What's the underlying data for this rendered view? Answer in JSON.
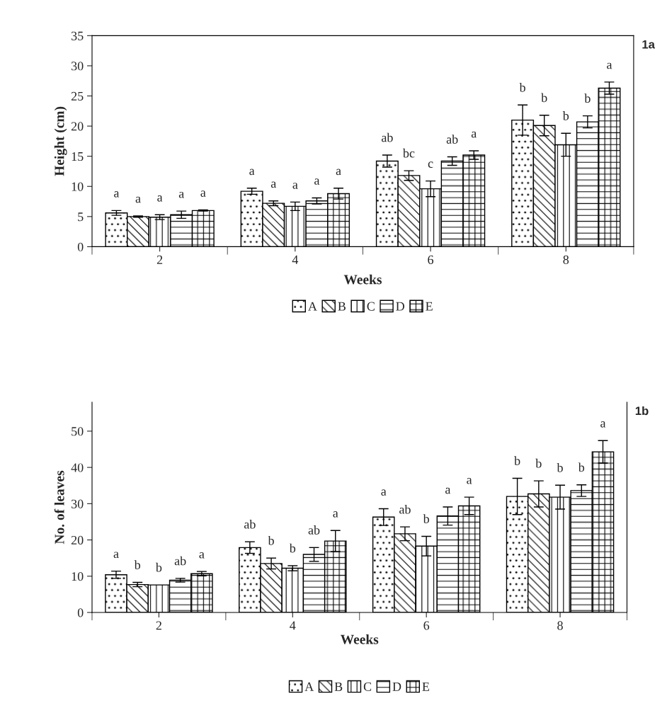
{
  "chart_data": [
    {
      "type": "bar",
      "categories": [
        "2",
        "4",
        "6",
        "8"
      ],
      "xlabel": "Weeks",
      "ylabel": "Height (cm)",
      "ylim": [
        0,
        35
      ],
      "yticks": [
        0,
        5,
        10,
        15,
        20,
        25,
        30,
        35
      ],
      "grid": false,
      "legend": "bottom",
      "annotations": [
        "1a"
      ],
      "series": [
        {
          "name": "A",
          "color": "#000000",
          "values": [
            5.6,
            9.2,
            14.2,
            21.0
          ],
          "errors": [
            0.4,
            0.5,
            1.0,
            2.5
          ],
          "value_labels": [
            "a",
            "a",
            "ab",
            "b"
          ]
        },
        {
          "name": "B",
          "color": "#000000",
          "values": [
            5.0,
            7.2,
            11.8,
            20.1
          ],
          "errors": [
            0.1,
            0.4,
            0.8,
            1.7
          ],
          "value_labels": [
            "a",
            "a",
            "bc",
            "b"
          ]
        },
        {
          "name": "C",
          "color": "#000000",
          "values": [
            4.9,
            6.7,
            9.6,
            16.9
          ],
          "errors": [
            0.4,
            0.7,
            1.3,
            1.9
          ],
          "value_labels": [
            "a",
            "a",
            "c",
            "b"
          ]
        },
        {
          "name": "D",
          "color": "#000000",
          "values": [
            5.3,
            7.6,
            14.2,
            20.7
          ],
          "errors": [
            0.6,
            0.5,
            0.7,
            1.0
          ],
          "value_labels": [
            "a",
            "a",
            "ab",
            "b"
          ]
        },
        {
          "name": "E",
          "color": "#000000",
          "values": [
            6.0,
            8.8,
            15.2,
            26.3
          ],
          "errors": [
            0.1,
            0.9,
            0.7,
            1.0
          ],
          "value_labels": [
            "a",
            "a",
            "a",
            "a"
          ]
        }
      ]
    },
    {
      "type": "bar",
      "categories": [
        "2",
        "4",
        "6",
        "8"
      ],
      "xlabel": "Weeks",
      "ylabel": "No. of leaves",
      "ylim": [
        0,
        58
      ],
      "yticks": [
        0,
        10,
        20,
        30,
        40,
        50
      ],
      "grid": false,
      "legend": "bottom",
      "annotations": [
        "1b"
      ],
      "series": [
        {
          "name": "A",
          "color": "#000000",
          "values": [
            10.4,
            17.9,
            26.3,
            32.0
          ],
          "errors": [
            1.0,
            1.6,
            2.3,
            5.0
          ],
          "value_labels": [
            "a",
            "ab",
            "a",
            "b"
          ]
        },
        {
          "name": "B",
          "color": "#000000",
          "values": [
            7.7,
            13.5,
            21.7,
            32.7
          ],
          "errors": [
            0.6,
            1.5,
            1.9,
            3.6
          ],
          "value_labels": [
            "b",
            "b",
            "ab",
            "b"
          ]
        },
        {
          "name": "C",
          "color": "#000000",
          "values": [
            7.6,
            12.2,
            18.3,
            31.8
          ],
          "errors": [
            null,
            0.7,
            2.7,
            3.3
          ],
          "value_labels": [
            "b",
            "b",
            "b",
            "b"
          ]
        },
        {
          "name": "D",
          "color": "#000000",
          "values": [
            8.9,
            16.0,
            26.6,
            33.6
          ],
          "errors": [
            0.5,
            1.9,
            2.5,
            1.6
          ],
          "value_labels": [
            "ab",
            "ab",
            "a",
            "b"
          ]
        },
        {
          "name": "E",
          "color": "#000000",
          "values": [
            10.7,
            19.7,
            29.4,
            44.3
          ],
          "errors": [
            0.6,
            2.9,
            2.4,
            3.1
          ],
          "value_labels": [
            "a",
            "a",
            "a",
            "a"
          ]
        }
      ]
    }
  ]
}
